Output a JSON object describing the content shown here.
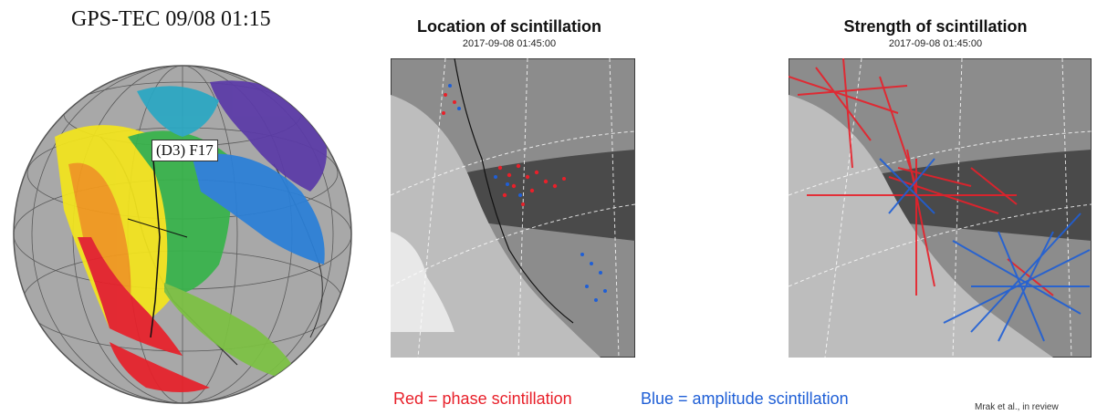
{
  "globe": {
    "title": "GPS-TEC 09/08 01:15",
    "track_label": "(D3) F17"
  },
  "panels": [
    {
      "title": "Location of scintillation",
      "timestamp": "2017-09-08 01:45:00"
    },
    {
      "title": "Strength of scintillation",
      "timestamp": "2017-09-08 01:45:00"
    }
  ],
  "legend": {
    "red": "Red = phase scintillation",
    "blue": "Blue = amplitude scintillation"
  },
  "credit": "Mrak et al., in review",
  "colors": {
    "phase": "#e8202a",
    "amplitude": "#1f5fd6"
  }
}
